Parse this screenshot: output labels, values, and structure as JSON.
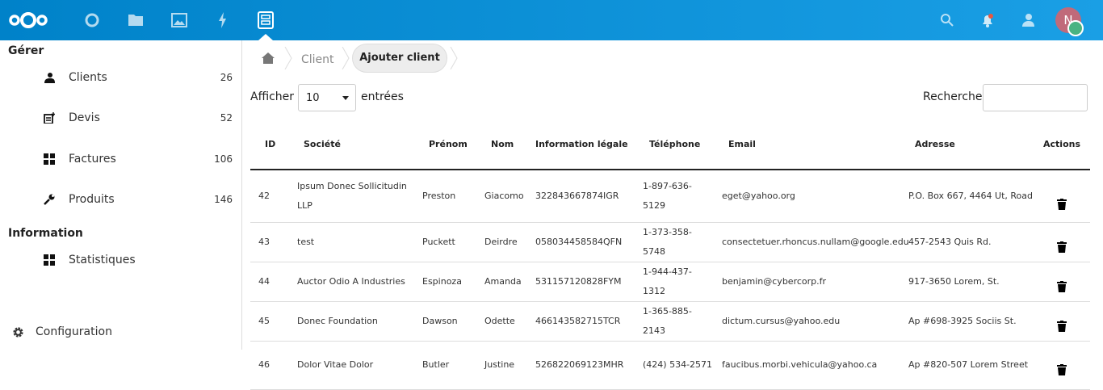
{
  "header": {
    "apps": [
      "dashboard",
      "files",
      "photos",
      "activity",
      "clients"
    ],
    "accent": "#0082c9",
    "avatar_letter": "N"
  },
  "sidebar": {
    "sections": [
      {
        "title": "Gérer",
        "items": [
          {
            "label": "Clients",
            "count": "26",
            "icon": "users-icon"
          },
          {
            "label": "Devis",
            "count": "52",
            "icon": "quote-icon"
          },
          {
            "label": "Factures",
            "count": "106",
            "icon": "grid-icon"
          },
          {
            "label": "Produits",
            "count": "146",
            "icon": "wrench-icon"
          }
        ]
      },
      {
        "title": "Information",
        "items": [
          {
            "label": "Statistiques",
            "icon": "grid-icon"
          }
        ]
      }
    ],
    "settings": "Configuration"
  },
  "breadcrumb": {
    "parent": "Client",
    "current": "Ajouter client"
  },
  "controls": {
    "show_label": "Afficher",
    "show_value": "10",
    "entries_label": "entrées",
    "search_label": "Recherche",
    "search_value": ""
  },
  "table": {
    "columns": [
      "ID",
      "Société",
      "Prénom",
      "Nom",
      "Information légale",
      "Téléphone",
      "Email",
      "Adresse",
      "Actions"
    ],
    "rows": [
      [
        "42",
        "Ipsum Donec Sollicitudin LLP",
        "Preston",
        "Giacomo",
        "322843667874IGR",
        "1-897-636-5129",
        "eget@yahoo.org",
        "P.O. Box 667, 4464 Ut, Road"
      ],
      [
        "43",
        "test",
        "Puckett",
        "Deirdre",
        "058034458584QFN",
        "1-373-358-5748",
        "consectetuer.rhoncus.nullam@google.edu",
        "457-2543 Quis Rd."
      ],
      [
        "44",
        "Auctor Odio A Industries",
        "Espinoza",
        "Amanda",
        "531157120828FYM",
        "1-944-437-1312",
        "benjamin@cybercorp.fr",
        "917-3650 Lorem, St."
      ],
      [
        "45",
        "Donec Foundation",
        "Dawson",
        "Odette",
        "466143582715TCR",
        "1-365-885-2143",
        "dictum.cursus@yahoo.edu",
        "Ap #698-3925 Sociis St."
      ],
      [
        "46",
        "Dolor Vitae Dolor",
        "Butler",
        "Justine",
        "526822069123MHR",
        "(424) 534-2571",
        "faucibus.morbi.vehicula@yahoo.ca",
        "Ap #820-507 Lorem Street"
      ]
    ]
  }
}
